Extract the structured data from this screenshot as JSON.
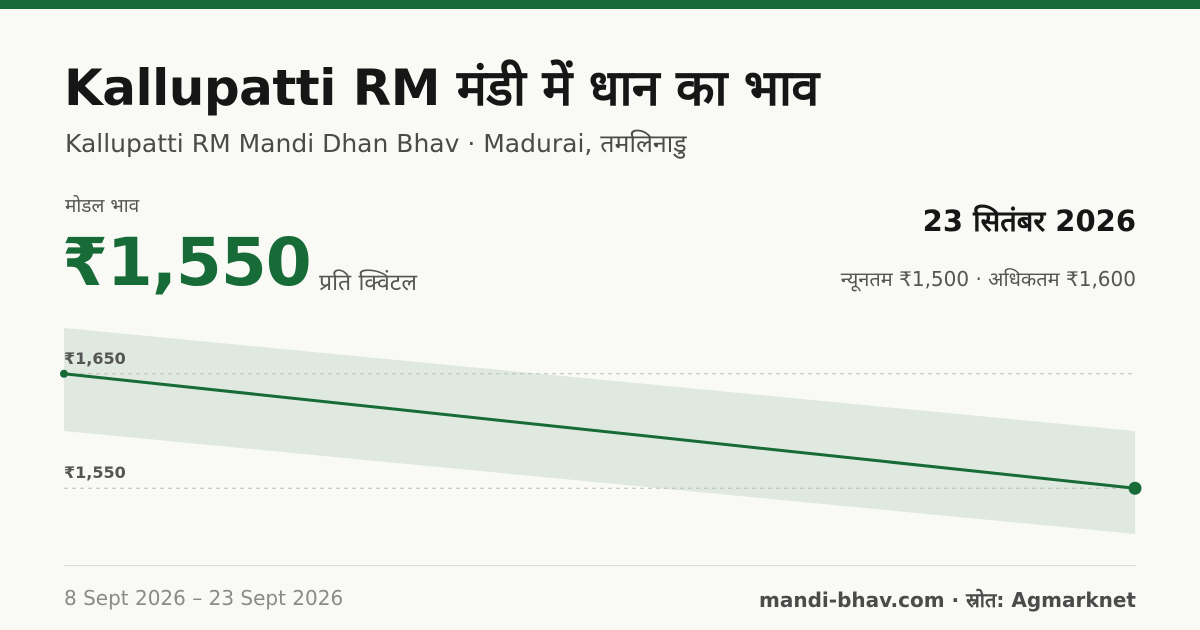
{
  "header": {
    "title": "Kallupatti RM मंडी में धान का भाव",
    "subtitle": "Kallupatti RM Mandi Dhan Bhav · Madurai, तमलिनाडु"
  },
  "summary": {
    "modal_label": "मोडल भाव",
    "price": "₹1,550",
    "unit": "प्रति क्विंटल",
    "date": "23 सितंबर 2026",
    "range": "न्यूनतम ₹1,500 · अधिकतम ₹1,600"
  },
  "footer": {
    "date_range": "8 Sept 2026 – 23 Sept 2026",
    "source": "mandi-bhav.com · स्रोत: Agmarknet"
  },
  "colors": {
    "accent": "#176b37",
    "band": "#dfe9e0",
    "gridline": "#bdbdb8"
  },
  "chart_data": {
    "type": "line",
    "x": [
      "8 Sept 2026",
      "23 Sept 2026"
    ],
    "series": [
      {
        "values": [
          1650,
          1550
        ]
      }
    ],
    "band": {
      "upper": [
        1700,
        1600
      ],
      "lower": [
        1600,
        1500
      ]
    },
    "y_ticks": [
      1650,
      1550
    ],
    "y_tick_labels": [
      "₹1,650",
      "₹1,550"
    ],
    "ylim": [
      1510,
      1690
    ],
    "grid": true
  }
}
